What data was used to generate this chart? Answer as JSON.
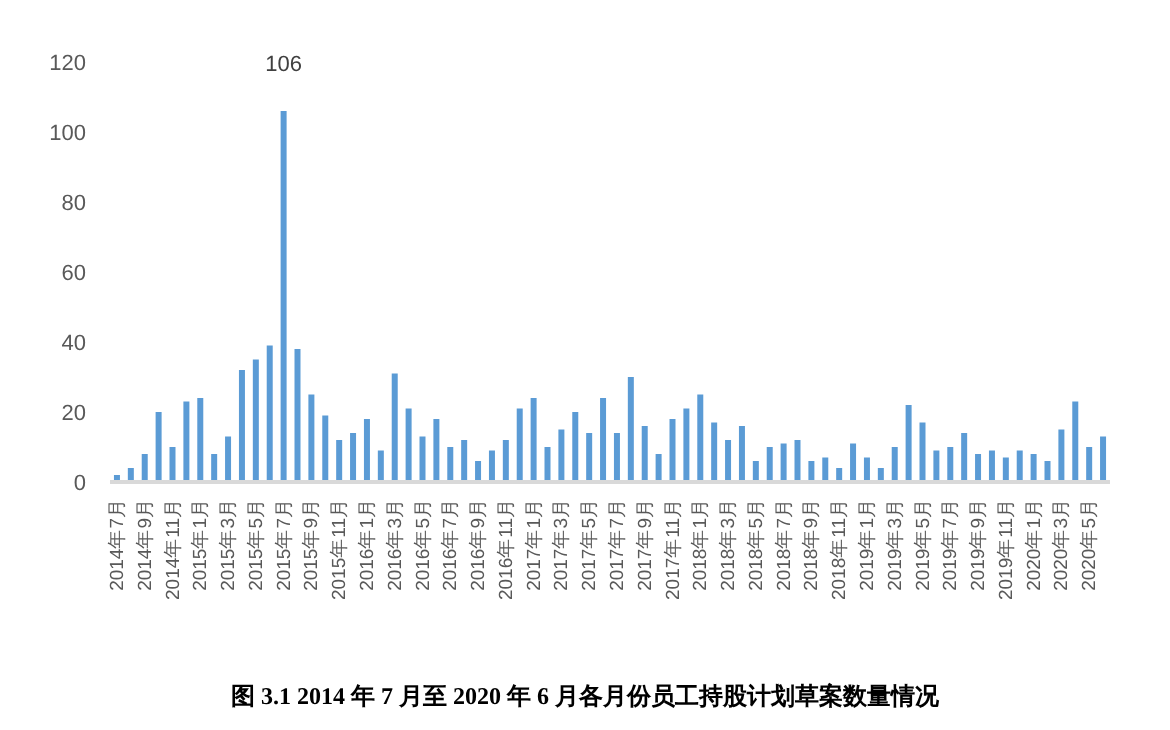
{
  "chart_data": {
    "type": "bar",
    "categories": [
      "2014年7月",
      null,
      "2014年9月",
      null,
      "2014年11月",
      null,
      "2015年1月",
      null,
      "2015年3月",
      null,
      "2015年5月",
      null,
      "2015年7月",
      null,
      "2015年9月",
      null,
      "2015年11月",
      null,
      "2016年1月",
      null,
      "2016年3月",
      null,
      "2016年5月",
      null,
      "2016年7月",
      null,
      "2016年9月",
      null,
      "2016年11月",
      null,
      "2017年1月",
      null,
      "2017年3月",
      null,
      "2017年5月",
      null,
      "2017年7月",
      null,
      "2017年9月",
      null,
      "2017年11月",
      null,
      "2018年1月",
      null,
      "2018年3月",
      null,
      "2018年5月",
      null,
      "2018年7月",
      null,
      "2018年9月",
      null,
      "2018年11月",
      null,
      "2019年1月",
      null,
      "2019年3月",
      null,
      "2019年5月",
      null,
      "2019年7月",
      null,
      "2019年9月",
      null,
      "2019年11月",
      null,
      "2020年1月",
      null,
      "2020年3月",
      null,
      "2020年5月",
      null
    ],
    "values": [
      2,
      4,
      8,
      20,
      10,
      23,
      24,
      8,
      13,
      32,
      35,
      39,
      106,
      38,
      25,
      19,
      12,
      14,
      18,
      9,
      31,
      21,
      13,
      18,
      10,
      12,
      6,
      9,
      12,
      21,
      24,
      10,
      15,
      20,
      14,
      24,
      14,
      30,
      16,
      8,
      18,
      21,
      25,
      17,
      12,
      16,
      6,
      10,
      11,
      12,
      6,
      7,
      4,
      11,
      7,
      4,
      10,
      22,
      17,
      9,
      10,
      14,
      8,
      9,
      7,
      9,
      8,
      6,
      15,
      23,
      10,
      13
    ],
    "value_labels": [
      null,
      null,
      null,
      null,
      null,
      null,
      null,
      null,
      null,
      null,
      null,
      null,
      "106",
      null,
      null,
      null,
      null,
      null,
      null,
      null,
      null,
      null,
      null,
      null,
      null,
      null,
      null,
      null,
      null,
      null,
      null,
      null,
      null,
      null,
      null,
      null,
      null,
      null,
      null,
      null,
      null,
      null,
      null,
      null,
      null,
      null,
      null,
      null,
      null,
      null,
      null,
      null,
      null,
      null,
      null,
      null,
      null,
      null,
      null,
      null,
      null,
      null,
      null,
      null,
      null,
      null,
      null,
      null,
      null,
      null,
      null,
      null
    ],
    "color": "#5b9bd5",
    "ylim": [
      0,
      120
    ],
    "yticks": [
      0,
      20,
      40,
      60,
      80,
      100,
      120
    ],
    "grid": false,
    "annotations": [
      "图 3.1 2014 年 7 月至 2020 年 6 月各月份员工持股计划草案数量情况"
    ]
  }
}
